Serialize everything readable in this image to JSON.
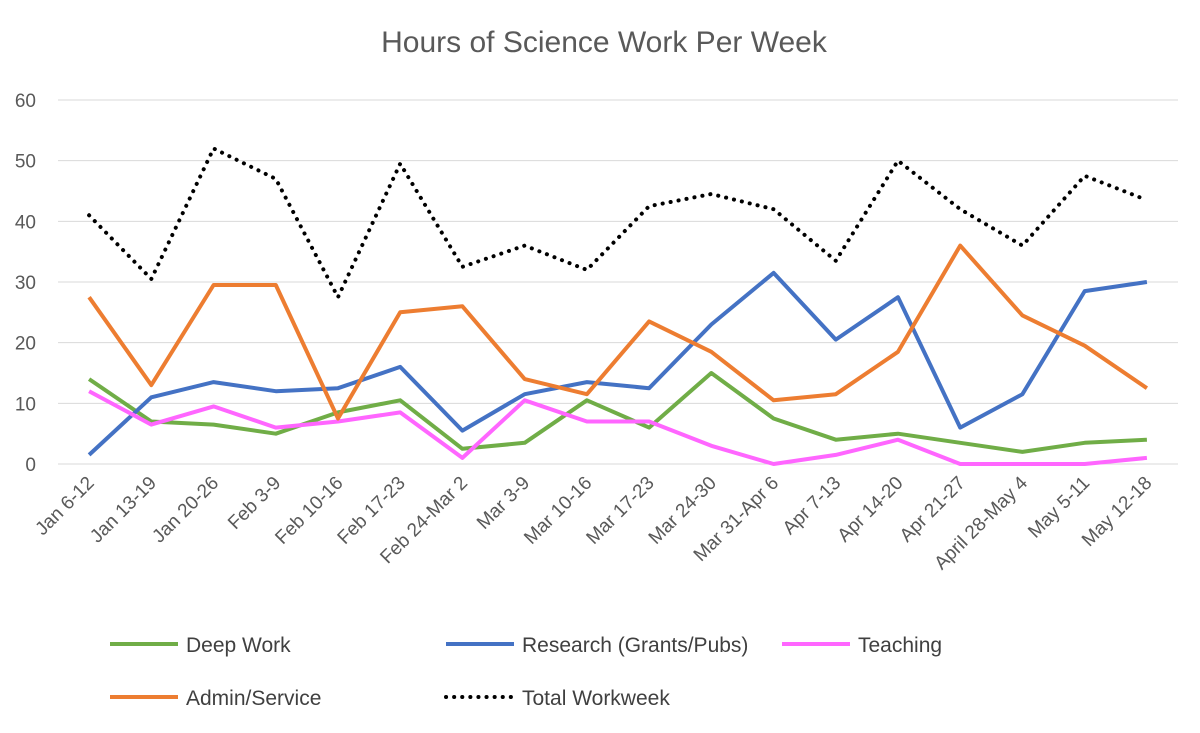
{
  "chart_data": {
    "type": "line",
    "title": "Hours of Science Work Per Week",
    "xlabel": "",
    "ylabel": "",
    "ylim": [
      0,
      60
    ],
    "yticks": [
      "0",
      "10",
      "20",
      "30",
      "40",
      "50",
      "60"
    ],
    "grid": true,
    "legend_placement": "bottom",
    "categories": [
      "Jan 6-12",
      "Jan 13-19",
      "Jan 20-26",
      "Feb 3-9",
      "Feb 10-16",
      "Feb 17-23",
      "Feb 24-Mar 2",
      "Mar 3-9",
      "Mar 10-16",
      "Mar 17-23",
      "Mar 24-30",
      "Mar 31-Apr 6",
      "Apr 7-13",
      "Apr 14-20",
      "Apr 21-27",
      "April 28-May 4",
      "May 5-11",
      "May 12-18"
    ],
    "series": [
      {
        "name": "Deep Work",
        "color": "#70ad47",
        "style": "solid",
        "values": [
          14,
          7,
          6.5,
          5,
          8.5,
          10.5,
          2.5,
          3.5,
          10.5,
          6,
          15,
          7.5,
          4,
          5,
          3.5,
          2,
          3.5,
          4
        ]
      },
      {
        "name": "Research (Grants/Pubs)",
        "color": "#4472c4",
        "style": "solid",
        "values": [
          1.5,
          11,
          13.5,
          12,
          12.5,
          16,
          5.5,
          11.5,
          13.5,
          12.5,
          23,
          31.5,
          20.5,
          27.5,
          6,
          11.5,
          28.5,
          30
        ]
      },
      {
        "name": "Teaching",
        "color": "#ff66ff",
        "style": "solid",
        "values": [
          12,
          6.5,
          9.5,
          6,
          7,
          8.5,
          1,
          10.5,
          7,
          7,
          3,
          0,
          1.5,
          4,
          0,
          0,
          0,
          1
        ]
      },
      {
        "name": "Admin/Service",
        "color": "#ed7d31",
        "style": "solid",
        "values": [
          27.5,
          13,
          29.5,
          29.5,
          7.5,
          25,
          26,
          14,
          11.5,
          23.5,
          18.5,
          10.5,
          11.5,
          18.5,
          36,
          24.5,
          19.5,
          12.5
        ]
      },
      {
        "name": "Total Workweek",
        "color": "#000000",
        "style": "dotted",
        "values": [
          41,
          30.5,
          52,
          47,
          27.5,
          49.5,
          32.5,
          36,
          32,
          42.5,
          44.5,
          42,
          33.5,
          50,
          42,
          36,
          47.5,
          43.5
        ]
      }
    ]
  }
}
